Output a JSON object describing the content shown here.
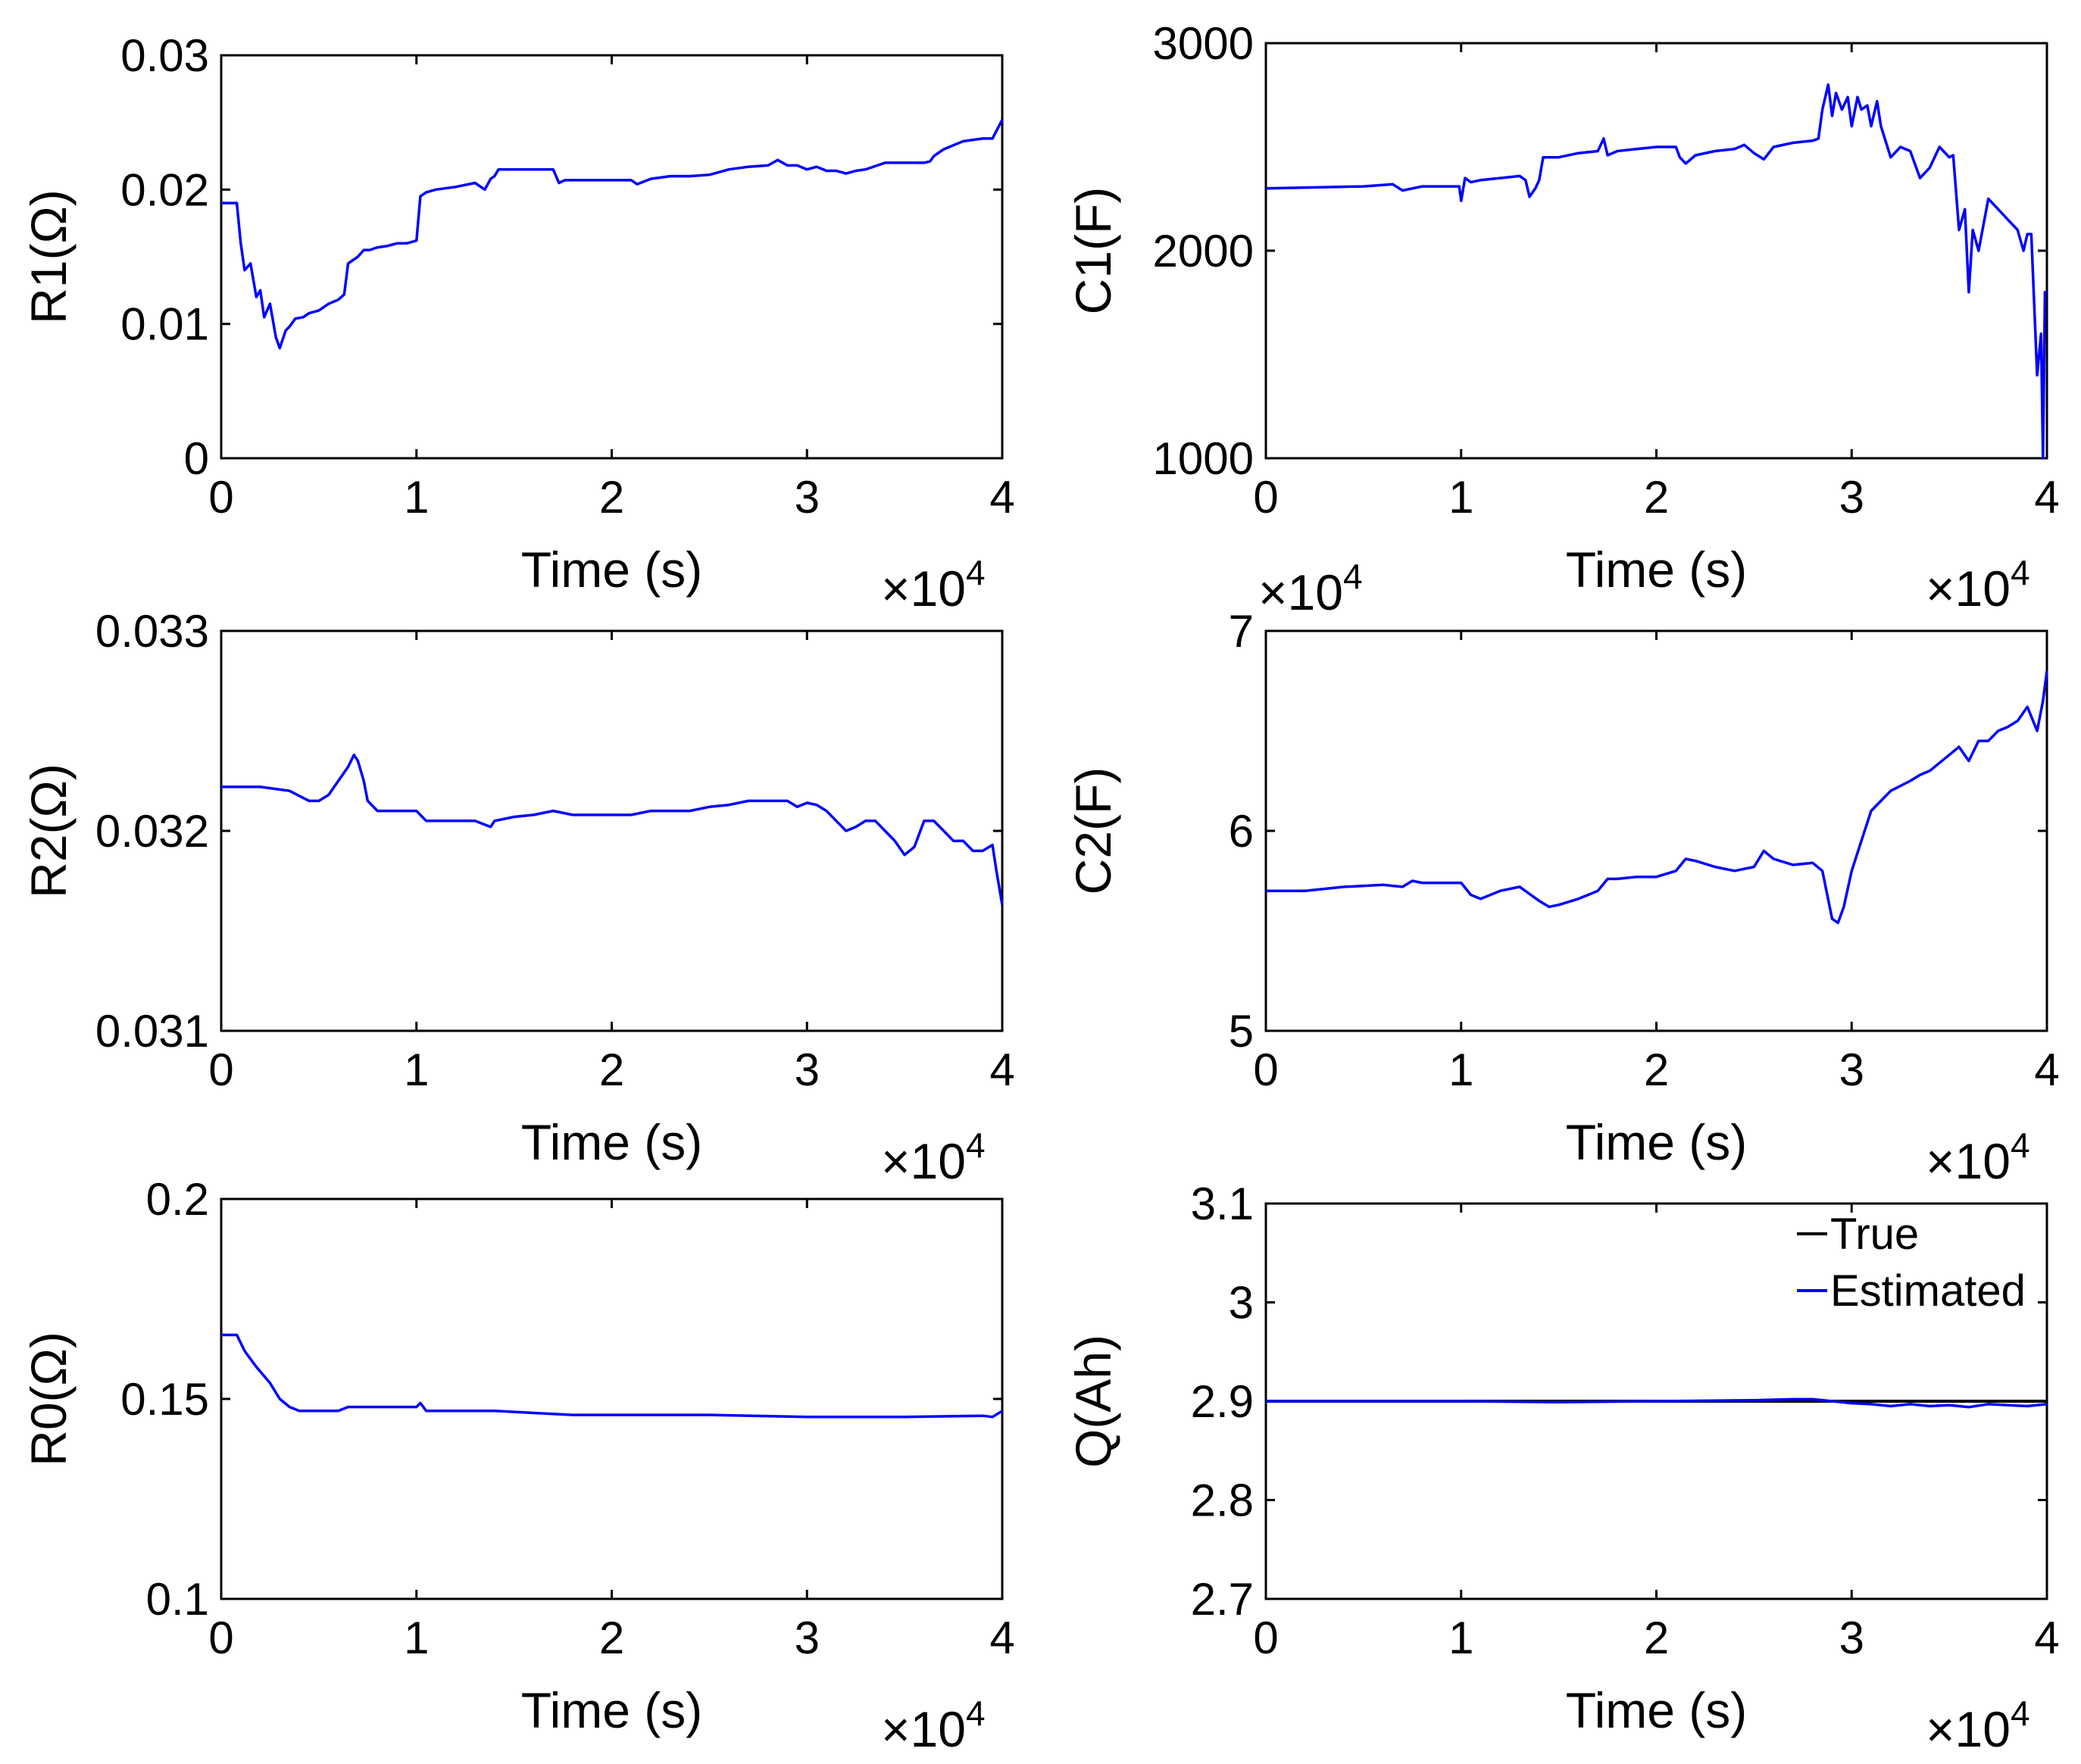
{
  "figure": {
    "type": "multi-panel line chart grid",
    "layout": "3 rows x 2 columns"
  },
  "chart_data": [
    {
      "id": "r1",
      "type": "line",
      "ylabel": "R1(Ω)",
      "xlabel": "Time (s)",
      "x_multiplier": "×10",
      "x_multiplier_exp": "4",
      "xlim": [
        0,
        4
      ],
      "ylim": [
        0,
        0.03
      ],
      "xticks": [
        0,
        1,
        2,
        3,
        4
      ],
      "yticks": [
        0,
        0.01,
        0.02,
        0.03
      ],
      "xtick_labels": [
        "0",
        "1",
        "2",
        "3",
        "4"
      ],
      "ytick_labels": [
        "0",
        "0.01",
        "0.02",
        "0.03"
      ],
      "series": [
        {
          "name": "Estimated",
          "color": "#0000ff",
          "x": [
            0,
            0.08,
            0.1,
            0.12,
            0.15,
            0.18,
            0.2,
            0.22,
            0.25,
            0.28,
            0.3,
            0.33,
            0.35,
            0.38,
            0.42,
            0.45,
            0.5,
            0.55,
            0.6,
            0.63,
            0.65,
            0.68,
            0.7,
            0.73,
            0.76,
            0.8,
            0.85,
            0.9,
            0.95,
            1.0,
            1.02,
            1.05,
            1.1,
            1.2,
            1.3,
            1.35,
            1.38,
            1.4,
            1.42,
            1.45,
            1.5,
            1.6,
            1.7,
            1.73,
            1.76,
            1.8,
            1.9,
            2.0,
            2.1,
            2.13,
            2.2,
            2.3,
            2.4,
            2.5,
            2.55,
            2.6,
            2.7,
            2.8,
            2.85,
            2.9,
            2.95,
            3.0,
            3.05,
            3.1,
            3.15,
            3.2,
            3.25,
            3.3,
            3.4,
            3.5,
            3.6,
            3.63,
            3.65,
            3.7,
            3.8,
            3.9,
            3.95,
            4.0
          ],
          "y": [
            0.019,
            0.019,
            0.016,
            0.014,
            0.0145,
            0.012,
            0.0125,
            0.0105,
            0.0115,
            0.009,
            0.0082,
            0.0095,
            0.0098,
            0.0104,
            0.0105,
            0.0108,
            0.011,
            0.0115,
            0.0118,
            0.0122,
            0.0145,
            0.0148,
            0.015,
            0.0155,
            0.0155,
            0.0157,
            0.0158,
            0.016,
            0.016,
            0.0162,
            0.0195,
            0.0198,
            0.02,
            0.0202,
            0.0205,
            0.02,
            0.0208,
            0.021,
            0.0215,
            0.0215,
            0.0215,
            0.0215,
            0.0215,
            0.0205,
            0.0207,
            0.0207,
            0.0207,
            0.0207,
            0.0207,
            0.0204,
            0.0208,
            0.021,
            0.021,
            0.0211,
            0.0213,
            0.0215,
            0.0217,
            0.0218,
            0.0222,
            0.0218,
            0.0218,
            0.0215,
            0.0217,
            0.0214,
            0.0214,
            0.0212,
            0.0214,
            0.0215,
            0.022,
            0.022,
            0.022,
            0.0221,
            0.0225,
            0.023,
            0.0236,
            0.0238,
            0.0238,
            0.0252
          ]
        }
      ]
    },
    {
      "id": "c1",
      "type": "line",
      "ylabel": "C1(F)",
      "xlabel": "Time (s)",
      "x_multiplier": "×10",
      "x_multiplier_exp": "4",
      "xlim": [
        0,
        4
      ],
      "ylim": [
        1000,
        3000
      ],
      "xticks": [
        0,
        1,
        2,
        3,
        4
      ],
      "yticks": [
        1000,
        2000,
        3000
      ],
      "xtick_labels": [
        "0",
        "1",
        "2",
        "3",
        "4"
      ],
      "ytick_labels": [
        "1000",
        "2000",
        "3000"
      ],
      "series": [
        {
          "name": "Estimated",
          "color": "#0000ff",
          "x": [
            0,
            0.5,
            0.65,
            0.7,
            0.75,
            0.8,
            0.99,
            1.0,
            1.02,
            1.05,
            1.1,
            1.2,
            1.3,
            1.33,
            1.35,
            1.38,
            1.4,
            1.42,
            1.5,
            1.6,
            1.7,
            1.73,
            1.75,
            1.8,
            1.9,
            2.0,
            2.1,
            2.12,
            2.15,
            2.2,
            2.3,
            2.4,
            2.45,
            2.5,
            2.55,
            2.6,
            2.7,
            2.8,
            2.83,
            2.85,
            2.88,
            2.9,
            2.92,
            2.95,
            2.98,
            3.0,
            3.03,
            3.05,
            3.08,
            3.1,
            3.13,
            3.15,
            3.2,
            3.25,
            3.3,
            3.35,
            3.4,
            3.45,
            3.5,
            3.52,
            3.55,
            3.58,
            3.6,
            3.62,
            3.65,
            3.7,
            3.75,
            3.8,
            3.85,
            3.88,
            3.9,
            3.92,
            3.95,
            3.97,
            3.98,
            3.99,
            4.0
          ],
          "y": [
            2300,
            2310,
            2320,
            2290,
            2300,
            2310,
            2310,
            2240,
            2350,
            2330,
            2340,
            2350,
            2360,
            2340,
            2260,
            2300,
            2340,
            2450,
            2450,
            2470,
            2480,
            2540,
            2460,
            2480,
            2490,
            2500,
            2500,
            2450,
            2420,
            2460,
            2480,
            2490,
            2510,
            2470,
            2440,
            2500,
            2520,
            2530,
            2540,
            2680,
            2800,
            2650,
            2760,
            2680,
            2740,
            2600,
            2740,
            2680,
            2700,
            2600,
            2720,
            2600,
            2450,
            2500,
            2480,
            2350,
            2400,
            2500,
            2450,
            2460,
            2100,
            2200,
            1800,
            2100,
            2000,
            2250,
            2200,
            2150,
            2100,
            2000,
            2080,
            2080,
            1400,
            1600,
            1000,
            1800,
            1800
          ]
        }
      ]
    },
    {
      "id": "r2",
      "type": "line",
      "ylabel": "R2(Ω)",
      "xlabel": "Time (s)",
      "x_multiplier": "×10",
      "x_multiplier_exp": "4",
      "xlim": [
        0,
        4
      ],
      "ylim": [
        0.031,
        0.033
      ],
      "xticks": [
        0,
        1,
        2,
        3,
        4
      ],
      "yticks": [
        0.031,
        0.032,
        0.033
      ],
      "xtick_labels": [
        "0",
        "1",
        "2",
        "3",
        "4"
      ],
      "ytick_labels": [
        "0.031",
        "0.032",
        "0.033"
      ],
      "series": [
        {
          "name": "Estimated",
          "color": "#0000ff",
          "x": [
            0,
            0.2,
            0.35,
            0.45,
            0.5,
            0.55,
            0.6,
            0.65,
            0.68,
            0.7,
            0.73,
            0.75,
            0.8,
            0.85,
            0.9,
            1.0,
            1.05,
            1.1,
            1.2,
            1.3,
            1.38,
            1.4,
            1.5,
            1.6,
            1.7,
            1.8,
            1.9,
            2.0,
            2.1,
            2.2,
            2.3,
            2.4,
            2.5,
            2.6,
            2.7,
            2.8,
            2.9,
            2.95,
            3.0,
            3.05,
            3.1,
            3.15,
            3.2,
            3.25,
            3.3,
            3.35,
            3.4,
            3.45,
            3.5,
            3.55,
            3.6,
            3.65,
            3.7,
            3.75,
            3.8,
            3.85,
            3.9,
            3.95,
            3.97,
            4.0
          ],
          "y": [
            0.03222,
            0.03222,
            0.0322,
            0.03215,
            0.03215,
            0.03218,
            0.03225,
            0.03232,
            0.03238,
            0.03235,
            0.03225,
            0.03215,
            0.0321,
            0.0321,
            0.0321,
            0.0321,
            0.03205,
            0.03205,
            0.03205,
            0.03205,
            0.03202,
            0.03205,
            0.03207,
            0.03208,
            0.0321,
            0.03208,
            0.03208,
            0.03208,
            0.03208,
            0.0321,
            0.0321,
            0.0321,
            0.03212,
            0.03213,
            0.03215,
            0.03215,
            0.03215,
            0.03212,
            0.03214,
            0.03213,
            0.0321,
            0.03205,
            0.032,
            0.03202,
            0.03205,
            0.03205,
            0.032,
            0.03195,
            0.03188,
            0.03192,
            0.03205,
            0.03205,
            0.032,
            0.03195,
            0.03195,
            0.0319,
            0.0319,
            0.03193,
            0.0318,
            0.03163
          ]
        }
      ]
    },
    {
      "id": "c2",
      "type": "line",
      "ylabel": "C2(F)",
      "xlabel": "Time (s)",
      "x_multiplier": "×10",
      "x_multiplier_exp": "4",
      "y_multiplier": "×10",
      "y_multiplier_exp": "4",
      "xlim": [
        0,
        4
      ],
      "ylim": [
        5,
        7
      ],
      "xticks": [
        0,
        1,
        2,
        3,
        4
      ],
      "yticks": [
        5,
        6,
        7
      ],
      "xtick_labels": [
        "0",
        "1",
        "2",
        "3",
        "4"
      ],
      "ytick_labels": [
        "5",
        "6",
        "7"
      ],
      "series": [
        {
          "name": "Estimated",
          "color": "#0000ff",
          "x": [
            0,
            0.2,
            0.4,
            0.6,
            0.7,
            0.75,
            0.8,
            1.0,
            1.05,
            1.1,
            1.2,
            1.3,
            1.4,
            1.45,
            1.5,
            1.6,
            1.7,
            1.75,
            1.8,
            1.9,
            2.0,
            2.1,
            2.15,
            2.2,
            2.3,
            2.4,
            2.5,
            2.55,
            2.6,
            2.7,
            2.8,
            2.85,
            2.9,
            2.93,
            2.96,
            3.0,
            3.05,
            3.1,
            3.15,
            3.2,
            3.3,
            3.35,
            3.4,
            3.5,
            3.55,
            3.6,
            3.65,
            3.7,
            3.75,
            3.8,
            3.85,
            3.9,
            3.95,
            3.98,
            4.0
          ],
          "y": [
            5.7,
            5.7,
            5.72,
            5.73,
            5.72,
            5.75,
            5.74,
            5.74,
            5.68,
            5.66,
            5.7,
            5.72,
            5.65,
            5.62,
            5.63,
            5.66,
            5.7,
            5.76,
            5.76,
            5.77,
            5.77,
            5.8,
            5.86,
            5.85,
            5.82,
            5.8,
            5.82,
            5.9,
            5.86,
            5.83,
            5.84,
            5.8,
            5.56,
            5.54,
            5.62,
            5.8,
            5.95,
            6.1,
            6.15,
            6.2,
            6.25,
            6.28,
            6.3,
            6.38,
            6.42,
            6.35,
            6.45,
            6.45,
            6.5,
            6.52,
            6.55,
            6.62,
            6.5,
            6.65,
            6.8
          ]
        }
      ]
    },
    {
      "id": "r0",
      "type": "line",
      "ylabel": "R0(Ω)",
      "xlabel": "Time (s)",
      "x_multiplier": "×10",
      "x_multiplier_exp": "4",
      "xlim": [
        0,
        4
      ],
      "ylim": [
        0.1,
        0.2
      ],
      "xticks": [
        0,
        1,
        2,
        3,
        4
      ],
      "yticks": [
        0.1,
        0.15,
        0.2
      ],
      "xtick_labels": [
        "0",
        "1",
        "2",
        "3",
        "4"
      ],
      "ytick_labels": [
        "0.1",
        "0.15",
        "0.2"
      ],
      "series": [
        {
          "name": "Estimated",
          "color": "#0000ff",
          "x": [
            0,
            0.08,
            0.12,
            0.18,
            0.25,
            0.3,
            0.35,
            0.4,
            0.5,
            0.6,
            0.65,
            0.7,
            0.8,
            1.0,
            1.02,
            1.05,
            1.2,
            1.4,
            1.6,
            1.8,
            2.0,
            2.5,
            3.0,
            3.5,
            3.9,
            3.95,
            4.0
          ],
          "y": [
            0.166,
            0.166,
            0.162,
            0.158,
            0.154,
            0.15,
            0.148,
            0.147,
            0.147,
            0.147,
            0.148,
            0.148,
            0.148,
            0.148,
            0.149,
            0.147,
            0.147,
            0.147,
            0.1465,
            0.146,
            0.146,
            0.146,
            0.1455,
            0.1455,
            0.1458,
            0.1455,
            0.147
          ]
        }
      ]
    },
    {
      "id": "q",
      "type": "line",
      "ylabel": "Q(Ah)",
      "xlabel": "Time (s)",
      "x_multiplier": "×10",
      "x_multiplier_exp": "4",
      "xlim": [
        0,
        4
      ],
      "ylim": [
        2.7,
        3.1
      ],
      "xticks": [
        0,
        1,
        2,
        3,
        4
      ],
      "yticks": [
        2.7,
        2.8,
        2.9,
        3.0,
        3.1
      ],
      "xtick_labels": [
        "0",
        "1",
        "2",
        "3",
        "4"
      ],
      "ytick_labels": [
        "2.7",
        "2.8",
        "2.9",
        "3",
        "3.1"
      ],
      "legend": {
        "placement": "top-right",
        "entries": [
          "True",
          "Estimated"
        ]
      },
      "series": [
        {
          "name": "True",
          "color": "#000000",
          "x": [
            0,
            4
          ],
          "y": [
            2.9,
            2.9
          ]
        },
        {
          "name": "Estimated",
          "color": "#0000ff",
          "x": [
            0,
            1.0,
            1.5,
            2.0,
            2.5,
            2.7,
            2.8,
            2.9,
            3.0,
            3.1,
            3.2,
            3.3,
            3.4,
            3.5,
            3.6,
            3.7,
            3.8,
            3.9,
            4.0
          ],
          "y": [
            2.9,
            2.9,
            2.899,
            2.9,
            2.901,
            2.902,
            2.902,
            2.9,
            2.898,
            2.897,
            2.895,
            2.897,
            2.895,
            2.896,
            2.894,
            2.897,
            2.896,
            2.895,
            2.897
          ]
        }
      ]
    }
  ]
}
